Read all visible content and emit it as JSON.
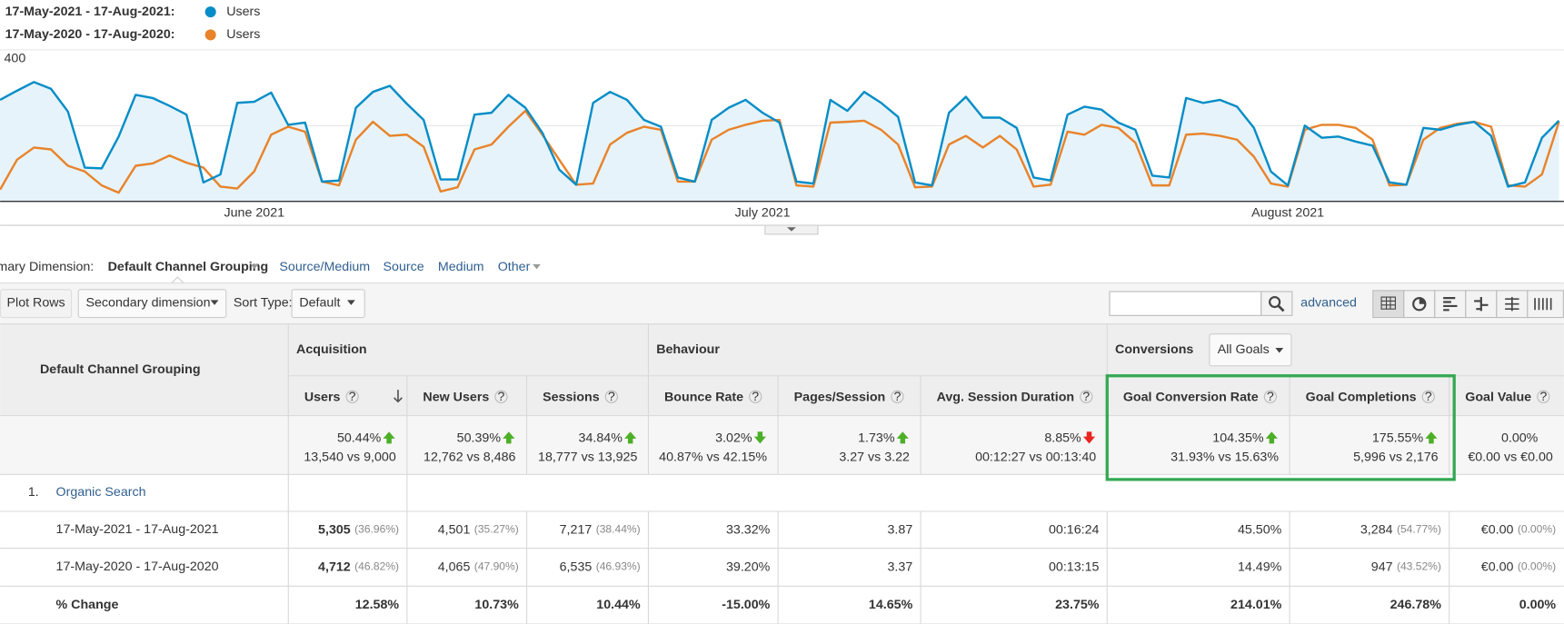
{
  "chart_data": {
    "type": "line",
    "ylim": [
      0,
      400
    ],
    "yticks": [
      200,
      400
    ],
    "grid": true,
    "xticks": [
      {
        "value": 15,
        "label": "June 2021"
      },
      {
        "value": 45,
        "label": "July 2021"
      },
      {
        "value": 76,
        "label": "August 2021"
      }
    ],
    "series": [
      {
        "period": "17-May-2021 - 17-Aug-2021:",
        "name": "Users",
        "color": "#058dc7",
        "area": true,
        "values": [
          268,
          292,
          315,
          297,
          237,
          89,
          87,
          171,
          281,
          273,
          252,
          229,
          50,
          71,
          260,
          263,
          287,
          202,
          208,
          52,
          55,
          247,
          289,
          305,
          258,
          215,
          58,
          58,
          229,
          234,
          281,
          247,
          181,
          84,
          44,
          260,
          289,
          268,
          215,
          197,
          63,
          52,
          215,
          247,
          268,
          234,
          208,
          52,
          47,
          268,
          239,
          289,
          260,
          223,
          50,
          42,
          234,
          276,
          221,
          221,
          194,
          63,
          55,
          229,
          250,
          242,
          208,
          189,
          68,
          63,
          273,
          260,
          268,
          250,
          194,
          79,
          42,
          200,
          168,
          171,
          158,
          147,
          50,
          44,
          194,
          189,
          202,
          210,
          173,
          39,
          50,
          168,
          213
        ]
      },
      {
        "period": "17-May-2020 - 17-Aug-2020:",
        "name": "Users",
        "color": "#e8832a",
        "area": false,
        "values": [
          31,
          110,
          142,
          137,
          94,
          79,
          42,
          23,
          94,
          100,
          121,
          102,
          89,
          39,
          34,
          79,
          176,
          197,
          184,
          52,
          42,
          163,
          210,
          173,
          176,
          144,
          26,
          37,
          137,
          150,
          197,
          239,
          176,
          110,
          44,
          47,
          150,
          181,
          197,
          189,
          52,
          52,
          163,
          189,
          202,
          213,
          215,
          42,
          39,
          208,
          210,
          213,
          189,
          150,
          37,
          39,
          150,
          173,
          142,
          173,
          137,
          39,
          44,
          184,
          176,
          202,
          194,
          155,
          42,
          42,
          176,
          179,
          173,
          163,
          118,
          47,
          39,
          189,
          202,
          202,
          194,
          163,
          42,
          44,
          163,
          194,
          205,
          210,
          197,
          42,
          39,
          71,
          210
        ]
      }
    ]
  },
  "dimension_bar": {
    "label": "Primary Dimension:",
    "selected": "Default Channel Grouping",
    "options": [
      "Source/Medium",
      "Source",
      "Medium",
      "Other"
    ]
  },
  "toolbar": {
    "plot_rows": "Plot Rows",
    "secondary": "Secondary dimension",
    "sort_label": "Sort Type:",
    "sort_value": "Default",
    "advanced": "advanced"
  },
  "table": {
    "dimension_header": "Default Channel Grouping",
    "help_icon": "?",
    "groups": [
      {
        "label": "Acquisition"
      },
      {
        "label": "Behaviour"
      },
      {
        "label": "Conversions",
        "selector": "All Goals"
      }
    ],
    "columns": [
      "Users",
      "New Users",
      "Sessions",
      "Bounce Rate",
      "Pages/Session",
      "Avg. Session Duration",
      "Goal Conversion Rate",
      "Goal Completions",
      "Goal Value"
    ],
    "sorted_column": 0,
    "highlight": {
      "columns": [
        6,
        7
      ],
      "color": "#34a853"
    },
    "summary": [
      {
        "change": "50.44%",
        "trend": "up",
        "tone": "good",
        "compare": "13,540 vs 9,000"
      },
      {
        "change": "50.39%",
        "trend": "up",
        "tone": "good",
        "compare": "12,762 vs 8,486"
      },
      {
        "change": "34.84%",
        "trend": "up",
        "tone": "good",
        "compare": "18,777 vs 13,925"
      },
      {
        "change": "3.02%",
        "trend": "down",
        "tone": "good",
        "compare": "40.87% vs 42.15%"
      },
      {
        "change": "1.73%",
        "trend": "up",
        "tone": "good",
        "compare": "3.27 vs 3.22"
      },
      {
        "change": "8.85%",
        "trend": "down",
        "tone": "bad",
        "compare": "00:12:27 vs 00:13:40"
      },
      {
        "change": "104.35%",
        "trend": "up",
        "tone": "good",
        "compare": "31.93% vs 15.63%"
      },
      {
        "change": "175.55%",
        "trend": "up",
        "tone": "good",
        "compare": "5,996 vs 2,176"
      },
      {
        "change": "0.00%",
        "trend": "none",
        "tone": "none",
        "compare": "€0.00 vs €0.00"
      }
    ],
    "segment": {
      "index": "1.",
      "label": "Organic Search"
    },
    "rows": [
      {
        "label": "17-May-2021 - 17-Aug-2021",
        "emphasis": false,
        "cells": [
          {
            "value": "5,305",
            "share": "(36.96%)"
          },
          {
            "value": "4,501",
            "share": "(35.27%)"
          },
          {
            "value": "7,217",
            "share": "(38.44%)"
          },
          {
            "value": "33.32%"
          },
          {
            "value": "3.87"
          },
          {
            "value": "00:16:24"
          },
          {
            "value": "45.50%"
          },
          {
            "value": "3,284",
            "share": "(54.77%)"
          },
          {
            "value": "€0.00",
            "share": "(0.00%)"
          }
        ]
      },
      {
        "label": "17-May-2020 - 17-Aug-2020",
        "emphasis": false,
        "cells": [
          {
            "value": "4,712",
            "share": "(46.82%)"
          },
          {
            "value": "4,065",
            "share": "(47.90%)"
          },
          {
            "value": "6,535",
            "share": "(46.93%)"
          },
          {
            "value": "39.20%"
          },
          {
            "value": "3.37"
          },
          {
            "value": "00:13:15"
          },
          {
            "value": "14.49%"
          },
          {
            "value": "947",
            "share": "(43.52%)"
          },
          {
            "value": "€0.00",
            "share": "(0.00%)"
          }
        ]
      },
      {
        "label": "% Change",
        "emphasis": true,
        "cells": [
          {
            "value": "12.58%"
          },
          {
            "value": "10.73%"
          },
          {
            "value": "10.44%"
          },
          {
            "value": "-15.00%"
          },
          {
            "value": "14.65%"
          },
          {
            "value": "23.75%"
          },
          {
            "value": "214.01%"
          },
          {
            "value": "246.78%"
          },
          {
            "value": "0.00%"
          }
        ]
      }
    ]
  }
}
